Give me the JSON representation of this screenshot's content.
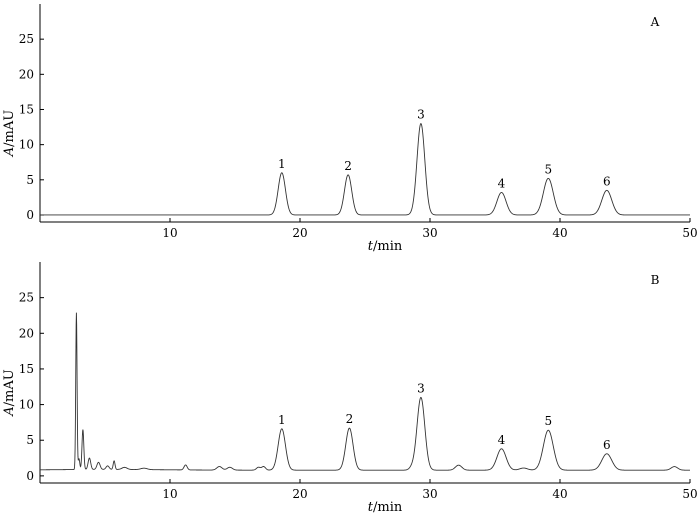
{
  "chart_data": [
    {
      "type": "line",
      "panel_label": "A",
      "xlabel": "t/min",
      "ylabel": "A/mAU",
      "xlim": [
        0,
        50
      ],
      "ylim": [
        -1,
        30
      ],
      "x_ticks": [
        10,
        20,
        30,
        40,
        50
      ],
      "y_ticks": [
        0,
        5,
        10,
        15,
        20,
        25
      ],
      "baseline": 0,
      "peaks": [
        {
          "label": "1",
          "rt": 18.6,
          "height": 6.0,
          "width": 0.28
        },
        {
          "label": "2",
          "rt": 23.7,
          "height": 5.7,
          "width": 0.28
        },
        {
          "label": "3",
          "rt": 29.3,
          "height": 13.0,
          "width": 0.3
        },
        {
          "label": "4",
          "rt": 35.5,
          "height": 3.2,
          "width": 0.35
        },
        {
          "label": "5",
          "rt": 39.1,
          "height": 5.2,
          "width": 0.38
        },
        {
          "label": "6",
          "rt": 43.6,
          "height": 3.5,
          "width": 0.38
        }
      ]
    },
    {
      "type": "line",
      "panel_label": "B",
      "xlabel": "t/min",
      "ylabel": "A/mAU",
      "xlim": [
        0,
        50
      ],
      "ylim": [
        -1,
        30
      ],
      "x_ticks": [
        10,
        20,
        30,
        40,
        50
      ],
      "y_ticks": [
        0,
        5,
        10,
        15,
        20,
        25
      ],
      "baseline": 0.8,
      "peaks": [
        {
          "label": "1",
          "rt": 18.6,
          "height": 5.8,
          "width": 0.28
        },
        {
          "label": "2",
          "rt": 23.8,
          "height": 5.9,
          "width": 0.28
        },
        {
          "label": "3",
          "rt": 29.3,
          "height": 10.2,
          "width": 0.3
        },
        {
          "label": "4",
          "rt": 35.5,
          "height": 3.0,
          "width": 0.35
        },
        {
          "label": "5",
          "rt": 39.1,
          "height": 5.6,
          "width": 0.38
        },
        {
          "label": "6",
          "rt": 43.6,
          "height": 2.3,
          "width": 0.38
        }
      ],
      "minor_peaks": [
        {
          "rt": 2.8,
          "height": 22.0,
          "width": 0.05
        },
        {
          "rt": 3.0,
          "height": 1.5,
          "width": 0.06
        },
        {
          "rt": 3.3,
          "height": 5.6,
          "width": 0.07
        },
        {
          "rt": 3.8,
          "height": 1.6,
          "width": 0.1
        },
        {
          "rt": 4.5,
          "height": 1.0,
          "width": 0.12
        },
        {
          "rt": 5.2,
          "height": 0.5,
          "width": 0.12
        },
        {
          "rt": 5.7,
          "height": 1.2,
          "width": 0.07
        },
        {
          "rt": 6.5,
          "height": 0.3,
          "width": 0.2
        },
        {
          "rt": 8.0,
          "height": 0.2,
          "width": 0.25
        },
        {
          "rt": 11.2,
          "height": 0.7,
          "width": 0.12
        },
        {
          "rt": 13.8,
          "height": 0.5,
          "width": 0.2
        },
        {
          "rt": 14.6,
          "height": 0.4,
          "width": 0.2
        },
        {
          "rt": 16.8,
          "height": 0.4,
          "width": 0.15
        },
        {
          "rt": 17.2,
          "height": 0.5,
          "width": 0.15
        },
        {
          "rt": 28.6,
          "height": 0.3,
          "width": 0.2
        },
        {
          "rt": 32.2,
          "height": 0.7,
          "width": 0.25
        },
        {
          "rt": 37.2,
          "height": 0.3,
          "width": 0.3
        },
        {
          "rt": 48.8,
          "height": 0.5,
          "width": 0.25
        }
      ]
    }
  ]
}
